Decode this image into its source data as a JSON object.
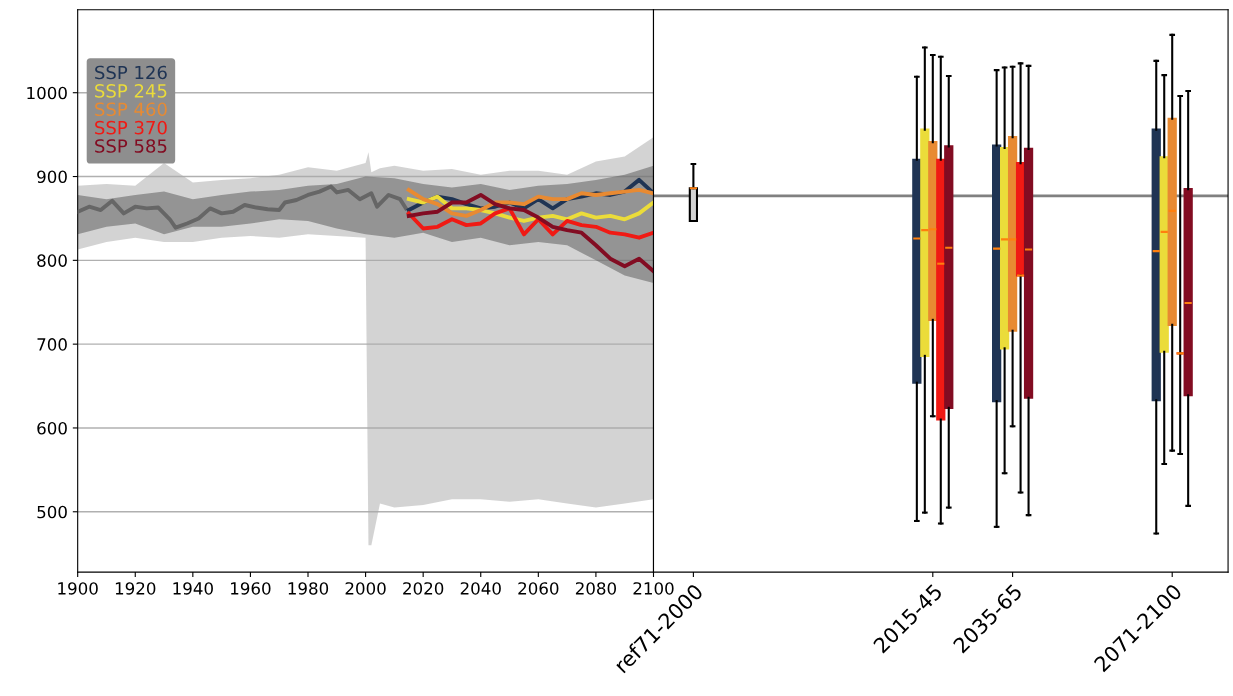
{
  "chart_data": [
    {
      "type": "line",
      "xlim": [
        1900,
        2100
      ],
      "xticks": [
        1900,
        1920,
        1940,
        1960,
        1980,
        2000,
        2020,
        2040,
        2060,
        2080,
        2100
      ],
      "ylim": [
        428,
        1099
      ],
      "yticks": [
        500,
        600,
        700,
        800,
        900,
        1000
      ],
      "grid": "y",
      "legend": "top left",
      "series": [
        {
          "color": "#a8a8a8",
          "x": [
            1900,
            1910,
            1920,
            1930,
            1940,
            1950,
            1960,
            1970,
            1980,
            1990,
            2000,
            2001,
            2002,
            2005,
            2010,
            2020,
            2030,
            2040,
            2050,
            2060,
            2070,
            2080,
            2090,
            2100
          ],
          "values": [
            null,
            null,
            null,
            null,
            null,
            null,
            null,
            null,
            null,
            null,
            null,
            null,
            null,
            null,
            null,
            null,
            null,
            null,
            null,
            null,
            null,
            null,
            null,
            null
          ],
          "lower": [
            813,
            822,
            827,
            822,
            822,
            827,
            829,
            827,
            831,
            829,
            827,
            460,
            460,
            510,
            505,
            508,
            515,
            515,
            512,
            515,
            510,
            505,
            510,
            515
          ],
          "upper": [
            889,
            891,
            889,
            916,
            893,
            896,
            898,
            902,
            911,
            907,
            916,
            929,
            905,
            910,
            913,
            907,
            909,
            902,
            907,
            907,
            902,
            918,
            924,
            947
          ]
        },
        {
          "color": "#555555",
          "x": [
            1900,
            1910,
            1920,
            1930,
            1940,
            1950,
            1960,
            1970,
            1980,
            1990,
            2000,
            2010,
            2020,
            2030,
            2040,
            2050,
            2060,
            2070,
            2080,
            2090,
            2100
          ],
          "values": [
            null,
            null,
            null,
            null,
            null,
            null,
            null,
            null,
            null,
            null,
            null,
            null,
            null,
            null,
            null,
            null,
            null,
            null,
            null,
            null,
            null
          ],
          "lower": [
            831,
            840,
            844,
            831,
            840,
            840,
            844,
            849,
            847,
            838,
            831,
            827,
            833,
            822,
            827,
            818,
            822,
            818,
            800,
            782,
            773
          ],
          "upper": [
            878,
            873,
            878,
            882,
            873,
            878,
            882,
            884,
            889,
            891,
            900,
            898,
            891,
            887,
            891,
            884,
            889,
            891,
            896,
            902,
            913
          ]
        },
        {
          "color": "#666666",
          "x": [
            1900,
            1904,
            1908,
            1912,
            1916,
            1920,
            1924,
            1928,
            1932,
            1934,
            1938,
            1942,
            1946,
            1950,
            1954,
            1958,
            1962,
            1966,
            1970,
            1972,
            1976,
            1980,
            1984,
            1988,
            1990,
            1994,
            1998,
            2002,
            2004,
            2008,
            2012,
            2014
          ],
          "values": [
            858,
            864,
            860,
            871,
            856,
            864,
            862,
            863,
            849,
            839,
            844,
            850,
            862,
            856,
            858,
            866,
            863,
            861,
            860,
            869,
            872,
            878,
            882,
            888,
            881,
            884,
            873,
            880,
            864,
            878,
            873,
            862
          ]
        },
        {
          "name": "SSP 126",
          "color": "#1f3454",
          "x": [
            2015,
            2020,
            2025,
            2030,
            2035,
            2040,
            2045,
            2050,
            2055,
            2060,
            2065,
            2070,
            2075,
            2080,
            2085,
            2090,
            2095,
            2100
          ],
          "values": [
            860,
            869,
            876,
            873,
            867,
            862,
            864,
            869,
            862,
            873,
            862,
            873,
            876,
            880,
            878,
            882,
            896,
            880
          ]
        },
        {
          "name": "SSP 245",
          "color": "#ebdc3a",
          "x": [
            2015,
            2020,
            2025,
            2030,
            2035,
            2040,
            2045,
            2050,
            2055,
            2060,
            2065,
            2070,
            2075,
            2080,
            2085,
            2090,
            2095,
            2100
          ],
          "values": [
            873,
            869,
            876,
            862,
            862,
            860,
            856,
            851,
            847,
            851,
            853,
            849,
            856,
            851,
            853,
            849,
            856,
            869
          ]
        },
        {
          "name": "SSP 460",
          "color": "#e88a32",
          "x": [
            2015,
            2020,
            2025,
            2030,
            2035,
            2040,
            2045,
            2050,
            2055,
            2060,
            2065,
            2070,
            2075,
            2080,
            2085,
            2090,
            2095,
            2100
          ],
          "values": [
            884,
            873,
            867,
            856,
            853,
            860,
            869,
            869,
            867,
            876,
            873,
            873,
            880,
            878,
            880,
            882,
            884,
            880
          ]
        },
        {
          "name": "SSP 370",
          "color": "#f01a14",
          "x": [
            2015,
            2020,
            2025,
            2030,
            2035,
            2040,
            2045,
            2050,
            2055,
            2060,
            2065,
            2070,
            2075,
            2080,
            2085,
            2090,
            2095,
            2100
          ],
          "values": [
            856,
            838,
            840,
            849,
            842,
            844,
            856,
            862,
            831,
            849,
            831,
            847,
            842,
            840,
            833,
            831,
            827,
            833
          ]
        },
        {
          "name": "SSP 585",
          "color": "#820c22",
          "x": [
            2015,
            2020,
            2025,
            2030,
            2035,
            2040,
            2045,
            2050,
            2055,
            2060,
            2065,
            2070,
            2075,
            2080,
            2085,
            2090,
            2095,
            2100
          ],
          "values": [
            853,
            856,
            858,
            869,
            869,
            878,
            867,
            862,
            860,
            851,
            840,
            836,
            833,
            818,
            802,
            793,
            802,
            787
          ]
        }
      ]
    },
    {
      "type": "box",
      "categories": [
        "ref71-2000",
        null,
        null,
        "2015-45",
        "2035-65",
        null,
        "2071-2100"
      ],
      "ylim": [
        428,
        1099
      ],
      "tick_labels": "x",
      "ref_lines": [
        {
          "axis": "y",
          "value": 877,
          "color": "#808080"
        }
      ],
      "series": [
        {
          "color": "#d3d3d3",
          "boxes": [
            {
              "low": 847,
              "q1": 847,
              "median": 886,
              "q3": 886,
              "high": 915
            },
            null,
            null,
            null,
            null,
            null,
            null
          ]
        },
        {
          "color": "#1f3454",
          "boxes": [
            null,
            null,
            null,
            {
              "low": 489,
              "q1": 654,
              "median": 826,
              "q3": 920,
              "high": 1019
            },
            {
              "low": 482,
              "q1": 632,
              "median": 814,
              "q3": 937,
              "high": 1027
            },
            null,
            {
              "low": 474,
              "q1": 633,
              "median": 811,
              "q3": 956,
              "high": 1038
            }
          ]
        },
        {
          "color": "#ebdc3a",
          "boxes": [
            null,
            null,
            null,
            {
              "low": 499,
              "q1": 686,
              "median": 836,
              "q3": 956,
              "high": 1054
            },
            {
              "low": 546,
              "q1": 695,
              "median": 825,
              "q3": 934,
              "high": 1030
            },
            null,
            {
              "low": 557,
              "q1": 691,
              "median": 834,
              "q3": 923,
              "high": 1021
            }
          ]
        },
        {
          "color": "#e88a32",
          "boxes": [
            null,
            null,
            null,
            {
              "low": 614,
              "q1": 729,
              "median": 837,
              "q3": 941,
              "high": 1045
            },
            {
              "low": 602,
              "q1": 716,
              "median": 825,
              "q3": 947,
              "high": 1031
            },
            null,
            {
              "low": 573,
              "q1": 723,
              "median": 859,
              "q3": 969,
              "high": 1069
            }
          ]
        },
        {
          "color": "#f01a14",
          "boxes": [
            null,
            null,
            null,
            {
              "low": 486,
              "q1": 610,
              "median": 796,
              "q3": 920,
              "high": 1043
            },
            {
              "low": 523,
              "q1": 782,
              "median": 782,
              "q3": 916,
              "high": 1035
            },
            null,
            {
              "low": 569,
              "q1": 689,
              "median": 689,
              "q3": 689,
              "high": 996
            }
          ]
        },
        {
          "color": "#820c22",
          "boxes": [
            null,
            null,
            null,
            {
              "low": 505,
              "q1": 624,
              "median": 815,
              "q3": 936,
              "high": 1020
            },
            {
              "low": 496,
              "q1": 636,
              "median": 813,
              "q3": 933,
              "high": 1032
            },
            null,
            {
              "low": 507,
              "q1": 639,
              "median": 749,
              "q3": 885,
              "high": 1002
            }
          ]
        }
      ]
    }
  ]
}
